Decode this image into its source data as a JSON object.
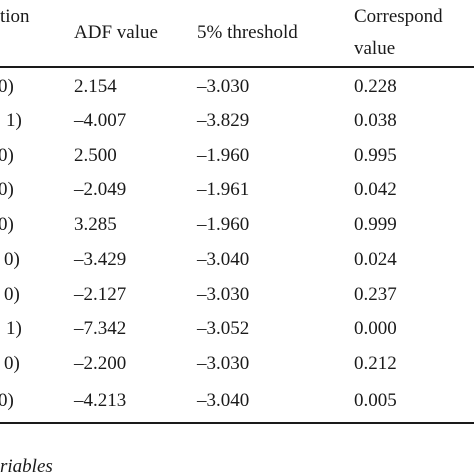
{
  "table": {
    "header": {
      "col0_line1": "tion",
      "col1": "ADF value",
      "col2": "5% threshold",
      "col3_line1": "Correspond",
      "col3_line2": "value"
    },
    "rows": [
      {
        "label": "0)",
        "adf": "2.154",
        "threshold": "–3.030",
        "value": "0.228"
      },
      {
        "label": "1)",
        "adf": "–4.007",
        "threshold": "–3.829",
        "value": "0.038"
      },
      {
        "label": "0)",
        "adf": "2.500",
        "threshold": "–1.960",
        "value": "0.995"
      },
      {
        "label": "0)",
        "adf": "–2.049",
        "threshold": "–1.961",
        "value": "0.042"
      },
      {
        "label": "0)",
        "adf": "3.285",
        "threshold": "–1.960",
        "value": "0.999"
      },
      {
        "label": "0)",
        "adf": "–3.429",
        "threshold": "–3.040",
        "value": "0.024"
      },
      {
        "label": "0)",
        "adf": "–2.127",
        "threshold": "–3.030",
        "value": "0.237"
      },
      {
        "label": "1)",
        "adf": "–7.342",
        "threshold": "–3.052",
        "value": "0.000"
      },
      {
        "label": "0)",
        "adf": "–2.200",
        "threshold": "–3.030",
        "value": "0.212"
      },
      {
        "label": "0)",
        "adf": "–4.213",
        "threshold": "–3.040",
        "value": "0.005"
      }
    ]
  },
  "footnote": "riables"
}
